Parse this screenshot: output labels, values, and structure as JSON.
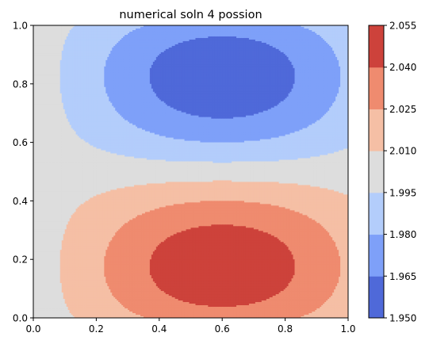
{
  "chart_data": {
    "type": "heatmap",
    "subtype": "filled-contour",
    "title": "numerical soln 4 possion",
    "xlabel": "",
    "ylabel": "",
    "xlim": [
      0.0,
      1.0
    ],
    "ylim": [
      0.0,
      1.0
    ],
    "x_ticks": [
      "0.0",
      "0.2",
      "0.4",
      "0.6",
      "0.8",
      "1.0"
    ],
    "y_ticks": [
      "0.0",
      "0.2",
      "0.4",
      "0.6",
      "0.8",
      "1.0"
    ],
    "grid": false,
    "colormap": "coolwarm",
    "colorbar_location": "right",
    "levels": [
      1.95,
      1.965,
      1.98,
      1.995,
      2.01,
      2.025,
      2.04,
      2.055
    ],
    "level_labels": [
      "1.950",
      "1.965",
      "1.980",
      "1.995",
      "2.010",
      "2.025",
      "2.040",
      "2.055"
    ],
    "band_colors": [
      "#4f69d9",
      "#7ea0f9",
      "#b3cdfb",
      "#dddddd",
      "#f5bfa5",
      "#ef8b6f",
      "#cd423b"
    ],
    "field_description": "Value near 1.995-2.010 along left edge x=0 and across middle y≈0.45-0.6; minimum (<1.965) region centered near x≈0.6, y≈0.9 at top; maximum (>2.040) region centered near x≈0.6, y≈0.1 at bottom."
  }
}
